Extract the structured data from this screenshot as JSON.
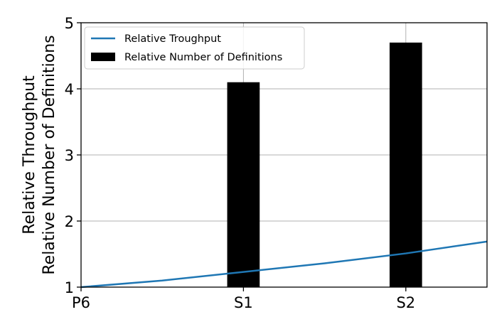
{
  "chart_data": {
    "type": "bar+line",
    "title": "",
    "ylabel_lines": [
      "Relative Throughput",
      "Relative Number of Definitions"
    ],
    "xlabel": "",
    "ylim": [
      1,
      5
    ],
    "yticks": [
      "1",
      "2",
      "3",
      "4",
      "5"
    ],
    "x_ticks": [
      {
        "label": "P6",
        "x": 0
      },
      {
        "label": "S1",
        "x": 1
      },
      {
        "label": "S2",
        "x": 2
      }
    ],
    "xlim": [
      0,
      2.5
    ],
    "grid": true,
    "legend_position": "upper-left",
    "series": [
      {
        "name": "Relative Troughput",
        "type": "line",
        "color": "#1f77b4",
        "points": [
          {
            "x": 0,
            "y": 1.0
          },
          {
            "x": 0.5,
            "y": 1.1
          },
          {
            "x": 1,
            "y": 1.23
          },
          {
            "x": 1.5,
            "y": 1.36
          },
          {
            "x": 2,
            "y": 1.51
          },
          {
            "x": 2.5,
            "y": 1.69
          }
        ]
      },
      {
        "name": "Relative Number of Definitions",
        "type": "bar",
        "color": "#000000",
        "bars": [
          {
            "x": 1,
            "value": 4.1
          },
          {
            "x": 2,
            "value": 4.7
          }
        ]
      }
    ]
  }
}
